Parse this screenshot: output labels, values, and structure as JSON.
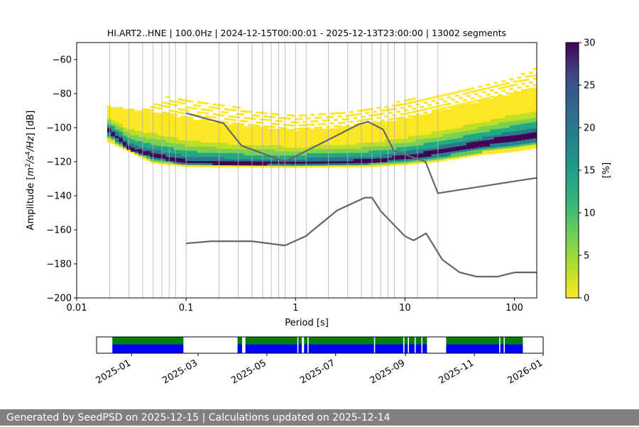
{
  "chart_data": [
    {
      "type": "heatmap",
      "title": "HI.ART2..HNE | 100.0Hz | 2024-12-15T00:00:01 - 2025-12-13T23:00:00 | 13002 segments",
      "xlabel": "Period [s]",
      "ylabel_parts": [
        "Amplitude [",
        "m",
        "2",
        "/",
        "s",
        "4",
        "/",
        "Hz",
        "] [dB]"
      ],
      "x_scale": "log",
      "xlim": [
        0.01,
        160
      ],
      "ylim": [
        -200,
        -50
      ],
      "x_ticks": [
        {
          "value": 0.01,
          "label": "0.01"
        },
        {
          "value": 0.1,
          "label": "0.1"
        },
        {
          "value": 1,
          "label": "1"
        },
        {
          "value": 10,
          "label": "10"
        },
        {
          "value": 100,
          "label": "100"
        }
      ],
      "y_ticks": [
        -60,
        -80,
        -100,
        -120,
        -140,
        -160,
        -180,
        -200
      ],
      "y_tick_labels": [
        "−60",
        "−80",
        "−100",
        "−120",
        "−140",
        "−160",
        "−180",
        "−200"
      ],
      "grid_periods": [
        0.02,
        0.03,
        0.04,
        0.05,
        0.06,
        0.07,
        0.08,
        0.1,
        0.2,
        0.3,
        0.4,
        0.5,
        0.6,
        0.7,
        0.8,
        1,
        1.25,
        2,
        3,
        4,
        5,
        6,
        7,
        8,
        10,
        13,
        20
      ],
      "grid": "vertical",
      "colorbar": {
        "label": "[%]",
        "min": 0,
        "max": 30,
        "ticks": [
          0,
          5,
          10,
          15,
          20,
          25,
          30
        ],
        "colormap": "viridis_r"
      },
      "density": {
        "period_range": [
          0.019,
          160
        ],
        "median": [
          [
            0.019,
            -100
          ],
          [
            0.03,
            -113
          ],
          [
            0.05,
            -117
          ],
          [
            0.1,
            -121
          ],
          [
            0.3,
            -122
          ],
          [
            1,
            -121.5
          ],
          [
            3,
            -121
          ],
          [
            6,
            -120
          ],
          [
            10,
            -118
          ],
          [
            20,
            -115
          ],
          [
            50,
            -110
          ],
          [
            100,
            -106
          ],
          [
            160,
            -104
          ]
        ],
        "upper": [
          [
            0.019,
            -88
          ],
          [
            0.05,
            -91
          ],
          [
            0.1,
            -95
          ],
          [
            0.3,
            -99
          ],
          [
            1,
            -102
          ],
          [
            3,
            -100
          ],
          [
            10,
            -95
          ],
          [
            30,
            -88
          ],
          [
            100,
            -80
          ],
          [
            160,
            -78
          ]
        ],
        "lower": [
          [
            0.019,
            -108
          ],
          [
            0.05,
            -121
          ],
          [
            0.1,
            -123
          ],
          [
            1,
            -123.5
          ],
          [
            5,
            -123
          ],
          [
            10,
            -122
          ],
          [
            20,
            -120
          ],
          [
            50,
            -116
          ],
          [
            100,
            -114
          ],
          [
            160,
            -112
          ]
        ],
        "outer_upper": [
          [
            0.03,
            -94
          ],
          [
            0.07,
            -80
          ],
          [
            0.1,
            -84
          ],
          [
            0.3,
            -88
          ],
          [
            1,
            -93
          ],
          [
            3,
            -90
          ],
          [
            10,
            -84
          ],
          [
            30,
            -78
          ],
          [
            100,
            -70
          ],
          [
            160,
            -65
          ]
        ]
      },
      "series": [
        {
          "name": "",
          "role": "high noise model",
          "color": "#666666",
          "x": [
            0.1,
            0.22,
            0.32,
            0.8,
            3.8,
            4.6,
            6.3,
            7.9,
            15.4,
            20,
            354.8
          ],
          "y": [
            -91.5,
            -97.4,
            -110.5,
            -120.0,
            -98.0,
            -96.5,
            -101.0,
            -113.5,
            -120.0,
            -138.5,
            -126.0
          ]
        },
        {
          "name": "",
          "role": "low noise model",
          "color": "#666666",
          "x": [
            0.1,
            0.17,
            0.4,
            0.8,
            1.24,
            2.4,
            4.3,
            5.0,
            6.0,
            10.0,
            12.0,
            15.6,
            21.9,
            31.6,
            45.0,
            70.0,
            101.0,
            154.0,
            328.0
          ],
          "y": [
            -168.0,
            -166.7,
            -166.7,
            -169.2,
            -163.7,
            -148.6,
            -141.1,
            -141.1,
            -149.0,
            -163.8,
            -166.2,
            -162.1,
            -177.5,
            -185.0,
            -187.5,
            -187.5,
            -185.0,
            -185.0,
            -187.5
          ]
        }
      ]
    },
    {
      "type": "timeline",
      "date_range": [
        "2024-12-01",
        "2026-01-01"
      ],
      "x_tick_labels": [
        "2025-01",
        "2025-03",
        "2025-05",
        "2025-07",
        "2025-09",
        "2025-11",
        "2026-01"
      ],
      "x_tick_dates": [
        "2025-01-01",
        "2025-03-01",
        "2025-05-01",
        "2025-07-01",
        "2025-09-01",
        "2025-11-01",
        "2026-01-01"
      ],
      "colors": {
        "data": "#0000ff",
        "psd": "#008000"
      },
      "gaps": [
        [
          "2024-12-01",
          "2024-12-15"
        ],
        [
          "2025-02-16",
          "2025-04-05"
        ],
        [
          "2025-04-09",
          "2025-04-12"
        ],
        [
          "2025-05-28",
          "2025-05-29"
        ],
        [
          "2025-06-01",
          "2025-06-03"
        ],
        [
          "2025-06-06",
          "2025-06-07"
        ],
        [
          "2025-08-04",
          "2025-08-05"
        ],
        [
          "2025-08-30",
          "2025-08-31"
        ],
        [
          "2025-09-03",
          "2025-09-04"
        ],
        [
          "2025-09-09",
          "2025-09-10"
        ],
        [
          "2025-09-15",
          "2025-09-16"
        ],
        [
          "2025-09-20",
          "2025-10-07"
        ],
        [
          "2025-11-23",
          "2025-11-24"
        ],
        [
          "2025-11-27",
          "2025-11-28"
        ],
        [
          "2025-12-14",
          "2026-01-01"
        ]
      ]
    }
  ],
  "footer": {
    "text": "Generated by SeedPSD on 2025-12-15 | Calculations updated on 2025-12-14"
  }
}
